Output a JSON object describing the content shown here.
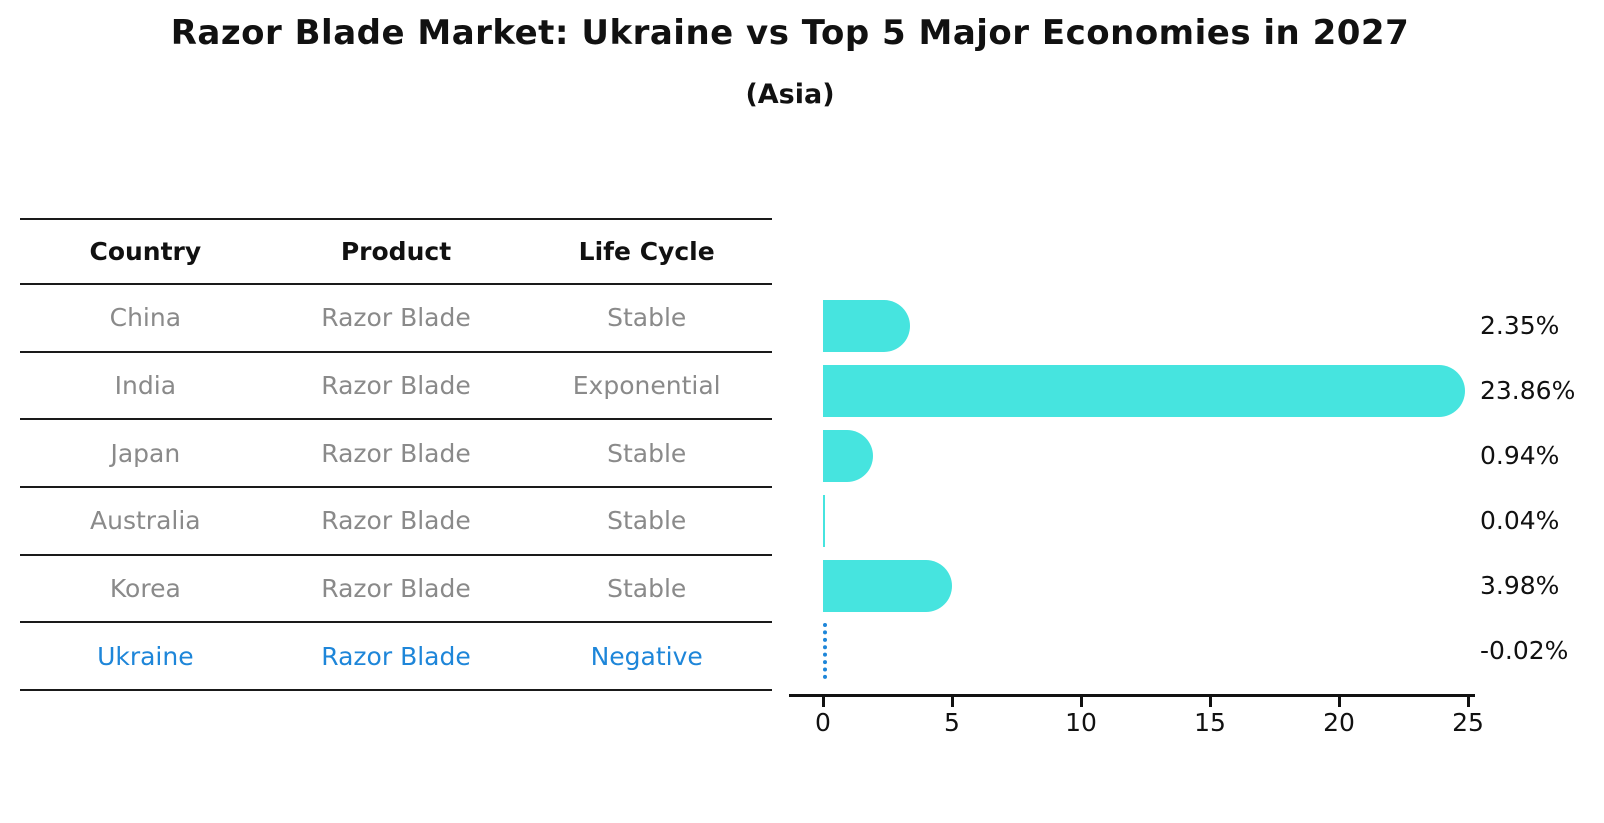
{
  "title": "Razor Blade Market: Ukraine vs Top 5 Major Economies in 2027",
  "subtitle": "(Asia)",
  "table": {
    "headers": [
      "Country",
      "Product",
      "Life Cycle"
    ],
    "rows": [
      {
        "country": "China",
        "product": "Razor Blade",
        "life_cycle": "Stable",
        "highlighted": false
      },
      {
        "country": "India",
        "product": "Razor Blade",
        "life_cycle": "Exponential",
        "highlighted": false
      },
      {
        "country": "Japan",
        "product": "Razor Blade",
        "life_cycle": "Stable",
        "highlighted": false
      },
      {
        "country": "Australia",
        "product": "Razor Blade",
        "life_cycle": "Stable",
        "highlighted": false
      },
      {
        "country": "Korea",
        "product": "Razor Blade",
        "life_cycle": "Stable",
        "highlighted": false
      },
      {
        "country": "Ukraine",
        "product": "Razor Blade",
        "life_cycle": "Negative",
        "highlighted": true
      }
    ]
  },
  "chart_data": {
    "type": "bar",
    "orientation": "horizontal",
    "categories": [
      "China",
      "India",
      "Japan",
      "Australia",
      "Korea",
      "Ukraine"
    ],
    "values": [
      2.35,
      23.86,
      0.94,
      0.04,
      3.98,
      -0.02
    ],
    "value_labels": [
      "2.35%",
      "23.86%",
      "0.94%",
      "0.04%",
      "3.98%",
      "-0.02%"
    ],
    "title": "",
    "xlabel": "",
    "ylabel": "",
    "xticks": [
      "0",
      "5",
      "10",
      "15",
      "20",
      "25"
    ],
    "xlim": [
      -1.3,
      25.5
    ],
    "grid": false,
    "legend": "none",
    "bar_color": "#46E4DF",
    "highlight_color": "#1E86D9",
    "highlight_style": "dotted-line"
  },
  "colors": {
    "bar": "#46E4DF",
    "highlight_blue": "#1E86D9",
    "table_body_text": "#8a8a8a",
    "table_header_text": "#111111",
    "axis": "#111111"
  }
}
